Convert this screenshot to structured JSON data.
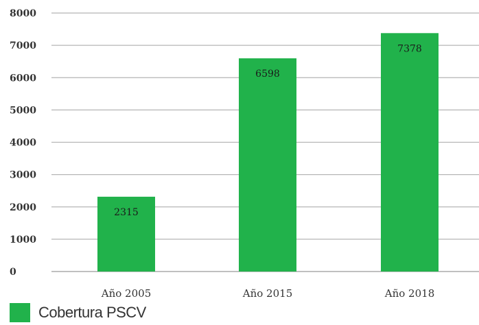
{
  "chart_data": {
    "type": "bar",
    "categories": [
      "Año 2005",
      "Año 2015",
      "Año 2018"
    ],
    "series": [
      {
        "name": "Cobertura PSCV",
        "values": [
          2315,
          6598,
          7378
        ],
        "color": "#21b24b"
      }
    ],
    "data_labels": [
      "2315",
      "6598",
      "7378"
    ],
    "y_ticks": [
      "0",
      "1000",
      "2000",
      "3000",
      "4000",
      "5000",
      "6000",
      "7000",
      "8000"
    ],
    "ylim": [
      0,
      8000
    ],
    "grid": true,
    "legend_position": "bottom-left"
  }
}
